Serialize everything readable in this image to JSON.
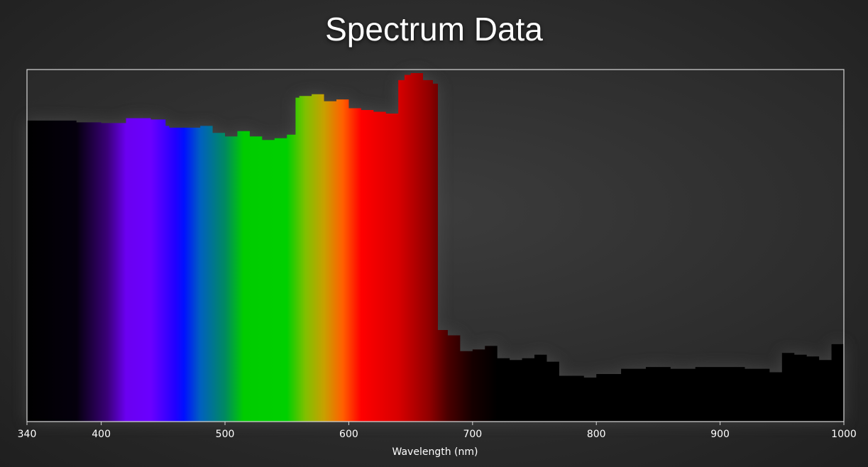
{
  "chart_data": {
    "type": "area",
    "title": "Spectrum Data",
    "xlabel": "Wavelength (nm)",
    "ylabel": "",
    "xlim": [
      340,
      1000
    ],
    "ylim": [
      0,
      1
    ],
    "grid": false,
    "xticks": [
      340,
      400,
      500,
      600,
      700,
      800,
      900,
      1000
    ],
    "x": [
      340,
      360,
      380,
      400,
      410,
      420,
      440,
      452,
      455,
      470,
      480,
      490,
      500,
      510,
      520,
      530,
      540,
      550,
      557,
      560,
      570,
      580,
      590,
      600,
      610,
      620,
      630,
      640,
      645,
      650,
      660,
      668,
      672,
      680,
      690,
      700,
      710,
      720,
      730,
      740,
      750,
      760,
      770,
      780,
      790,
      800,
      820,
      840,
      860,
      880,
      900,
      920,
      940,
      950,
      960,
      970,
      980,
      990,
      1000
    ],
    "y": [
      0.855,
      0.855,
      0.85,
      0.848,
      0.848,
      0.862,
      0.858,
      0.84,
      0.835,
      0.835,
      0.84,
      0.82,
      0.81,
      0.825,
      0.81,
      0.8,
      0.805,
      0.815,
      0.92,
      0.925,
      0.93,
      0.91,
      0.915,
      0.89,
      0.885,
      0.88,
      0.875,
      0.97,
      0.985,
      0.99,
      0.97,
      0.96,
      0.26,
      0.245,
      0.2,
      0.205,
      0.215,
      0.18,
      0.175,
      0.18,
      0.19,
      0.17,
      0.13,
      0.13,
      0.125,
      0.135,
      0.15,
      0.155,
      0.15,
      0.155,
      0.155,
      0.15,
      0.14,
      0.195,
      0.19,
      0.185,
      0.175,
      0.22,
      0.215
    ],
    "colormap": [
      {
        "nm": 340,
        "color": "#000000"
      },
      {
        "nm": 380,
        "color": "#05000d"
      },
      {
        "nm": 405,
        "color": "#3a0079"
      },
      {
        "nm": 420,
        "color": "#6a00f0"
      },
      {
        "nm": 440,
        "color": "#6a00ff"
      },
      {
        "nm": 460,
        "color": "#2000ff"
      },
      {
        "nm": 467,
        "color": "#0010ff"
      },
      {
        "nm": 480,
        "color": "#0060c0"
      },
      {
        "nm": 500,
        "color": "#008a60"
      },
      {
        "nm": 515,
        "color": "#00cc00"
      },
      {
        "nm": 550,
        "color": "#00d000"
      },
      {
        "nm": 565,
        "color": "#80c000"
      },
      {
        "nm": 580,
        "color": "#c8a000"
      },
      {
        "nm": 595,
        "color": "#ff6000"
      },
      {
        "nm": 610,
        "color": "#ff0000"
      },
      {
        "nm": 640,
        "color": "#d80000"
      },
      {
        "nm": 665,
        "color": "#900000"
      },
      {
        "nm": 680,
        "color": "#4a0000"
      },
      {
        "nm": 700,
        "color": "#150000"
      },
      {
        "nm": 720,
        "color": "#000000"
      },
      {
        "nm": 1000,
        "color": "#000000"
      }
    ]
  }
}
